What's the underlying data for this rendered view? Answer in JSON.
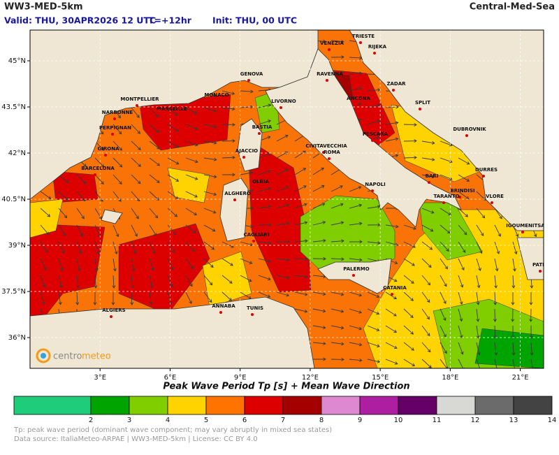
{
  "header": {
    "title": "WW3-MED-5km",
    "region": "Central-Med-Sea",
    "valid": "Valid: THU, 30APR2026 12 UTC",
    "step": "T=+12hr",
    "init": "Init: THU, 00 UTC"
  },
  "map": {
    "xlim": [
      0,
      22
    ],
    "ylim": [
      35,
      46
    ],
    "lon_ticks": [
      {
        "value": 3,
        "label": "3°E"
      },
      {
        "value": 6,
        "label": "6°E"
      },
      {
        "value": 9,
        "label": "9°E"
      },
      {
        "value": 12,
        "label": "12°E"
      },
      {
        "value": 15,
        "label": "15°E"
      },
      {
        "value": 18,
        "label": "18°E"
      },
      {
        "value": 21,
        "label": "21°E"
      }
    ],
    "lat_ticks": [
      {
        "value": 45,
        "label": "45°N"
      },
      {
        "value": 43.5,
        "label": "43.5°N"
      },
      {
        "value": 42,
        "label": "42°N"
      },
      {
        "value": 40.5,
        "label": "40.5°N"
      },
      {
        "value": 39,
        "label": "39°N"
      },
      {
        "value": 37.5,
        "label": "37.5°N"
      },
      {
        "value": 36,
        "label": "36°N"
      }
    ],
    "cities": [
      "VENEZIA",
      "TRIESTE",
      "RIJEKA",
      "RAVENNA",
      "ZADAR",
      "GENOVA",
      "MONACO",
      "LIVORNO",
      "ANCONA",
      "SPLIT",
      "MONTPELLIER",
      "MARSEILLE",
      "NARBONNE",
      "PERPIGNAN",
      "BASTIA",
      "DUBROVNIK",
      "PESCARA",
      "GIRONA",
      "AJACCIO",
      "CIVITAVECCHIA",
      "ROMA",
      "BARCELONA",
      "DURRES",
      "BARI",
      "NAPOLI",
      "OLBIA",
      "BRINDISI",
      "ALGHERO",
      "TARANTO",
      "VLORE",
      "IGOUMENITSA",
      "CAGLIARI",
      "PALERMO",
      "PATRAS",
      "CATANIA",
      "ALGIERS",
      "ANNABA",
      "TUNIS"
    ],
    "logo": [
      "centro",
      "meteo"
    ]
  },
  "colorbar": {
    "title": "Peak Wave Period Tp [s]  +  Mean Wave Direction",
    "ticks": [
      2,
      3,
      4,
      5,
      6,
      7,
      8,
      9,
      10,
      11,
      12,
      13,
      14
    ],
    "colors": [
      "#1fcc7a",
      "#00a400",
      "#80ce00",
      "#ffd300",
      "#ff7300",
      "#dc0000",
      "#a50000",
      "#df88d2",
      "#ad1ea0",
      "#650068",
      "#d8d8d4",
      "#6b6b6b",
      "#434343"
    ]
  },
  "footer": {
    "note": "Tp: peak wave period (dominant wave component; may vary abruptly in mixed sea states)",
    "source": "Data source: ItaliaMeteo-ARPAE | WW3-MED-5km | License: CC BY 4.0"
  }
}
